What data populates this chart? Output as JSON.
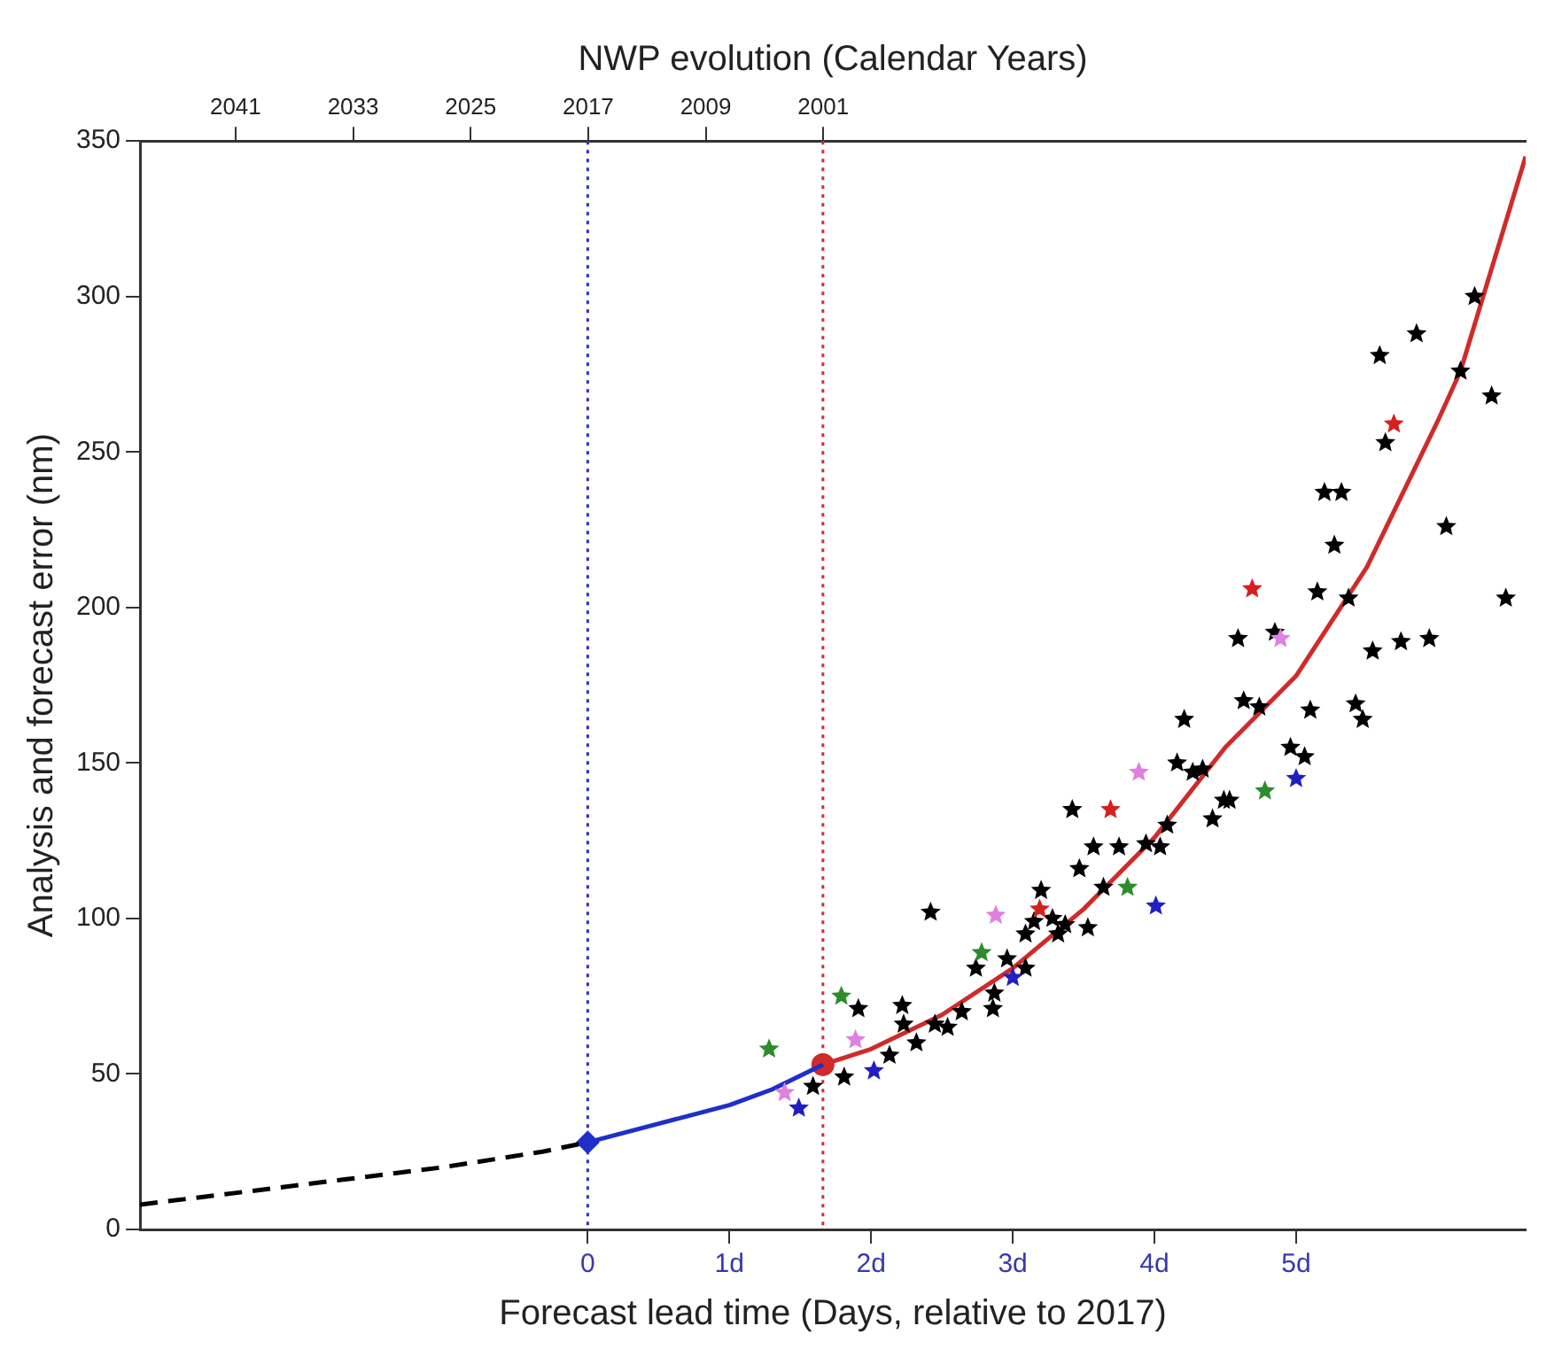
{
  "chart_data": {
    "type": "scatter",
    "xlabel": "Forecast lead time (Days, relative to 2017)",
    "ylabel": "Analysis and forecast error (nm)",
    "x2label": "NWP evolution (Calendar Years)",
    "xlim": [
      -3.16,
      6.62
    ],
    "xticks": [
      0,
      {
        "value": 1,
        "label": "1d"
      },
      {
        "value": 2,
        "label": "2d"
      },
      {
        "value": 3,
        "label": "3d"
      },
      {
        "value": 4,
        "label": "4d"
      },
      {
        "value": 5,
        "label": "5d"
      }
    ],
    "x2lim": [
      2047.5,
      1953.2
    ],
    "x2ticks": [
      2041,
      2033,
      2025,
      2017,
      2009,
      2001
    ],
    "ylim": [
      0,
      350
    ],
    "yticks": [
      0,
      50,
      100,
      150,
      200,
      250,
      300,
      350
    ],
    "grid": false,
    "legend": false,
    "ref_lines": [
      {
        "axis": "x",
        "value": 0,
        "color": "#3030c0",
        "line_style": "dotted"
      },
      {
        "axis": "x",
        "value": 1.66,
        "color": "#d03030",
        "line_style": "dotted"
      }
    ],
    "series": [
      {
        "type": "line",
        "color": "#000000",
        "line_style": "dashed",
        "marker": "none",
        "x": [
          -3.16,
          -2.44,
          -1.73,
          -1.02,
          -0.32,
          0
        ],
        "values": [
          8,
          12,
          16,
          20,
          25,
          28
        ]
      },
      {
        "type": "line",
        "color": "#1f2fc8",
        "line_style": "solid",
        "marker": "none",
        "x": [
          0,
          0.5,
          1,
          1.3,
          1.66
        ],
        "values": [
          28,
          34,
          40,
          45,
          53
        ]
      },
      {
        "type": "line",
        "color": "#d02a2a",
        "line_style": "solid",
        "marker": "none",
        "x": [
          1.66,
          2,
          2.5,
          3,
          3.5,
          4,
          4.5,
          5,
          5.5,
          6,
          6.16,
          6.62
        ],
        "values": [
          53,
          58,
          69,
          84,
          103,
          126,
          155,
          178,
          213,
          260,
          276,
          345
        ]
      },
      {
        "type": "scatter",
        "color": "#000000",
        "marker": "star",
        "x": [
          1.59,
          1.81,
          1.91,
          2.22,
          2.23,
          2.13,
          2.32,
          2.45,
          2.54,
          2.64,
          2.42,
          2.74,
          2.86,
          2.87,
          2.96,
          3.09,
          3.09,
          3.2,
          3.15,
          3.28,
          3.32,
          3.37,
          3.47,
          3.53,
          3.57,
          3.64,
          3.75,
          4.04,
          3.42,
          3.94,
          4.09,
          4.16,
          4.27,
          4.34,
          4.21,
          4.41,
          4.49,
          4.53,
          4.63,
          4.74,
          4.59,
          4.85,
          4.96,
          5.06,
          5.1,
          5.15,
          5.37,
          5.27,
          5.42,
          5.47,
          5.54,
          5.74,
          5.94,
          6.06,
          6.48,
          6.26,
          5.85,
          5.59,
          6.16,
          6.38,
          5.63,
          5.2,
          5.32
        ],
        "values": [
          46,
          49,
          71,
          72,
          66,
          56,
          60,
          66,
          65,
          70,
          102,
          84,
          71,
          76,
          87,
          95,
          84,
          109,
          99,
          100,
          95,
          98,
          116,
          97,
          123,
          110,
          123,
          123,
          135,
          124,
          130,
          150,
          147,
          148,
          164,
          132,
          138,
          138,
          170,
          168,
          190,
          192,
          155,
          152,
          167,
          205,
          203,
          220,
          169,
          164,
          186,
          189,
          190,
          226,
          203,
          300,
          288,
          281,
          276,
          268,
          253,
          237,
          237
        ]
      },
      {
        "type": "scatter",
        "color": "#d62020",
        "marker": "star",
        "x": [
          3.19,
          3.69,
          4.69,
          5.69
        ],
        "values": [
          103,
          135,
          206,
          259
        ]
      },
      {
        "type": "scatter",
        "color": "#e080e0",
        "marker": "star",
        "x": [
          1.39,
          1.89,
          2.88,
          3.89,
          4.89
        ],
        "values": [
          44,
          61,
          101,
          147,
          190
        ]
      },
      {
        "type": "scatter",
        "color": "#2e8b2e",
        "marker": "star",
        "x": [
          1.28,
          1.79,
          2.78,
          3.81,
          4.78
        ],
        "values": [
          58,
          75,
          89,
          110,
          141
        ]
      },
      {
        "type": "scatter",
        "color": "#2020c0",
        "marker": "star",
        "x": [
          1.49,
          2.02,
          3,
          4.01,
          5
        ],
        "values": [
          39,
          51,
          81,
          104,
          145
        ]
      },
      {
        "type": "scatter",
        "color": "#1f2fc8",
        "marker": "diamond",
        "x": [
          0
        ],
        "values": [
          28
        ]
      },
      {
        "type": "scatter",
        "color": "#d02a2a",
        "marker": "circle",
        "x": [
          1.66
        ],
        "values": [
          53
        ]
      }
    ]
  }
}
